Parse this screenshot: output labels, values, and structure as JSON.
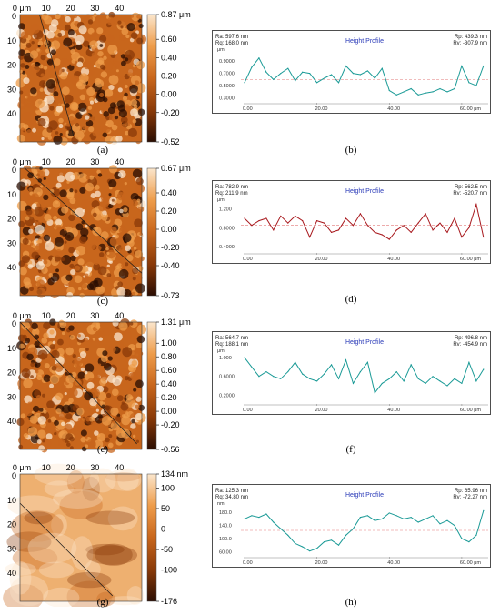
{
  "chart_data": [
    {
      "type": "heatmap",
      "panel": "(a)",
      "xticks": [
        "0 μm",
        "10",
        "20",
        "30",
        "40"
      ],
      "yticks": [
        "0",
        "10",
        "20",
        "30",
        "40"
      ],
      "colorbar": [
        "0.87 μm",
        "0.60",
        "0.40",
        "0.20",
        "0.00",
        "-0.20",
        "-0.52"
      ],
      "colorbar_values": [
        0.87,
        0.6,
        0.4,
        0.2,
        0.0,
        -0.2,
        -0.52
      ],
      "colors": [
        "#2a0d02",
        "#8a3a08",
        "#c8661c",
        "#ee9c4a",
        "#fbe6cc"
      ],
      "line": [
        [
          8,
          0
        ],
        [
          22,
          50
        ]
      ],
      "texture": "grainy"
    },
    {
      "type": "line",
      "panel": "(b)",
      "title": "Height Profile",
      "stats_left": [
        "Ra: 597.6 nm",
        "Rq: 168.0 nm"
      ],
      "stats_right": [
        "Rp: 439.3 nm",
        "Rv: -307.9 nm"
      ],
      "yunit": "μm",
      "yticks": [
        "0.9000",
        "0.7000",
        "0.5000",
        "0.3000"
      ],
      "ytick_values": [
        0.9,
        0.7,
        0.5,
        0.3
      ],
      "xticks": [
        "0.00",
        "20.00",
        "40.00",
        "60.00 μm"
      ],
      "xtick_values": [
        0,
        20,
        40,
        60
      ],
      "xlim": [
        -1,
        67.3
      ],
      "ylim": [
        0.25,
        1.05
      ],
      "mean": 0.6,
      "color": "#1a9a96",
      "x": [
        0,
        2,
        4,
        6,
        8,
        10,
        12,
        14,
        16,
        18,
        20,
        22,
        24,
        26,
        28,
        30,
        32,
        34,
        36,
        38,
        40,
        42,
        44,
        46,
        48,
        50,
        52,
        54,
        56,
        58,
        60,
        62,
        64,
        66
      ],
      "values": [
        0.55,
        0.8,
        0.95,
        0.72,
        0.6,
        0.7,
        0.78,
        0.58,
        0.72,
        0.7,
        0.55,
        0.62,
        0.68,
        0.55,
        0.82,
        0.7,
        0.68,
        0.74,
        0.62,
        0.78,
        0.42,
        0.35,
        0.4,
        0.45,
        0.35,
        0.38,
        0.4,
        0.45,
        0.4,
        0.45,
        0.82,
        0.55,
        0.5,
        0.82
      ]
    },
    {
      "type": "heatmap",
      "panel": "(c)",
      "xticks": [
        "0 μm",
        "10",
        "20",
        "30",
        "40"
      ],
      "yticks": [
        "0",
        "10",
        "20",
        "30",
        "40"
      ],
      "colorbar": [
        "0.67 μm",
        "0.40",
        "0.20",
        "0.00",
        "-0.20",
        "-0.40",
        "-0.73"
      ],
      "colorbar_values": [
        0.67,
        0.4,
        0.2,
        0.0,
        -0.2,
        -0.4,
        -0.73
      ],
      "colors": [
        "#2a0d02",
        "#8a3a08",
        "#c8661c",
        "#ee9c4a",
        "#fbe6cc"
      ],
      "line": [
        [
          2,
          0
        ],
        [
          50,
          43
        ]
      ],
      "texture": "grainy"
    },
    {
      "type": "line",
      "panel": "(d)",
      "title": "Height Profile",
      "stats_left": [
        "Ra: 782.9 nm",
        "Rq: 211.9 nm"
      ],
      "stats_right": [
        "Rp: 562.5 nm",
        "Rv: -520.7 nm"
      ],
      "yunit": "μm",
      "yticks": [
        "1.200",
        "0.8000",
        "0.4000"
      ],
      "ytick_values": [
        1.2,
        0.8,
        0.4
      ],
      "xticks": [
        "0.00",
        "20.00",
        "40.00",
        "60.00 μm"
      ],
      "xtick_values": [
        0,
        20,
        40,
        60
      ],
      "xlim": [
        -1,
        67.3
      ],
      "ylim": [
        0.3,
        1.35
      ],
      "mean": 0.85,
      "color": "#a8191e",
      "x": [
        0,
        2,
        4,
        6,
        8,
        10,
        12,
        14,
        16,
        18,
        20,
        22,
        24,
        26,
        28,
        30,
        32,
        34,
        36,
        38,
        40,
        42,
        44,
        46,
        48,
        50,
        52,
        54,
        56,
        58,
        60,
        62,
        64,
        66
      ],
      "values": [
        1.0,
        0.85,
        0.95,
        1.0,
        0.75,
        1.05,
        0.9,
        1.05,
        0.95,
        0.6,
        0.95,
        0.9,
        0.7,
        0.75,
        1.0,
        0.85,
        1.1,
        0.85,
        0.7,
        0.65,
        0.55,
        0.75,
        0.85,
        0.7,
        0.9,
        1.1,
        0.75,
        0.9,
        0.7,
        1.0,
        0.6,
        0.8,
        1.3,
        0.6
      ]
    },
    {
      "type": "heatmap",
      "panel": "(e)",
      "xticks": [
        "0 μm",
        "10",
        "20",
        "30",
        "40"
      ],
      "yticks": [
        "0",
        "10",
        "20",
        "30",
        "40"
      ],
      "colorbar": [
        "1.31 μm",
        "1.00",
        "0.80",
        "0.60",
        "0.40",
        "0.20",
        "0.00",
        "-0.20",
        "-0.56"
      ],
      "colorbar_values": [
        1.31,
        1.0,
        0.8,
        0.6,
        0.4,
        0.2,
        0.0,
        -0.2,
        -0.56
      ],
      "colors": [
        "#2a0d02",
        "#8a3a08",
        "#c8661c",
        "#ee9c4a",
        "#fbe6cc"
      ],
      "line": [
        [
          0,
          0
        ],
        [
          48,
          50
        ]
      ],
      "texture": "grainy"
    },
    {
      "type": "line",
      "panel": "(f)",
      "title": "Height Profile",
      "stats_left": [
        "Ra: 564.7 nm",
        "Rq: 188.1 nm"
      ],
      "stats_right": [
        "Rp: 496.8 nm",
        "Rv: -454.9 nm"
      ],
      "yunit": "μm",
      "yticks": [
        "1.000",
        "0.6000",
        "0.2000"
      ],
      "ytick_values": [
        1.0,
        0.6,
        0.2
      ],
      "xticks": [
        "0.00",
        "20.00",
        "40.00",
        "60.00 μm"
      ],
      "xtick_values": [
        0,
        20,
        40,
        60
      ],
      "xlim": [
        -1,
        67.3
      ],
      "ylim": [
        0.05,
        1.1
      ],
      "mean": 0.57,
      "color": "#1a9a96",
      "x": [
        0,
        2,
        4,
        6,
        8,
        10,
        12,
        14,
        16,
        18,
        20,
        22,
        24,
        26,
        28,
        30,
        32,
        34,
        36,
        38,
        40,
        42,
        44,
        46,
        48,
        50,
        52,
        54,
        56,
        58,
        60,
        62,
        64,
        66
      ],
      "values": [
        1.0,
        0.8,
        0.6,
        0.7,
        0.6,
        0.55,
        0.7,
        0.9,
        0.65,
        0.55,
        0.5,
        0.65,
        0.85,
        0.55,
        0.95,
        0.45,
        0.7,
        0.9,
        0.25,
        0.45,
        0.55,
        0.7,
        0.5,
        0.85,
        0.55,
        0.45,
        0.6,
        0.5,
        0.4,
        0.55,
        0.45,
        0.9,
        0.5,
        0.75
      ]
    },
    {
      "type": "heatmap",
      "panel": "(g)",
      "xticks": [
        "0 μm",
        "10",
        "20",
        "30",
        "40"
      ],
      "yticks": [
        "0",
        "10",
        "20",
        "30",
        "40"
      ],
      "colorbar": [
        "134 nm",
        "100",
        "50",
        "0",
        "-50",
        "-100",
        "-176"
      ],
      "colorbar_values": [
        134,
        100,
        50,
        0,
        -50,
        -100,
        -176
      ],
      "colors": [
        "#2a0d02",
        "#8a3a08",
        "#c8661c",
        "#ee9c4a",
        "#fbe6cc"
      ],
      "line": [
        [
          0,
          12
        ],
        [
          38,
          50
        ]
      ],
      "texture": "smooth"
    },
    {
      "type": "line",
      "panel": "(h)",
      "title": "Height Profile",
      "stats_left": [
        "Ra: 125.3 nm",
        "Rq: 34.80 nm"
      ],
      "stats_right": [
        "Rp: 65.96 nm",
        "Rv: -72.27 nm"
      ],
      "yunit": "nm",
      "yticks": [
        "180.0",
        "140.0",
        "100.0",
        "60.00"
      ],
      "ytick_values": [
        180,
        140,
        100,
        60
      ],
      "xticks": [
        "0.00",
        "20.00",
        "40.00",
        "60.00 μm"
      ],
      "xtick_values": [
        0,
        20,
        40,
        60
      ],
      "xlim": [
        -1,
        67.3
      ],
      "ylim": [
        50,
        200
      ],
      "mean": 125,
      "color": "#1a9a96",
      "x": [
        0,
        2,
        4,
        6,
        8,
        10,
        12,
        14,
        16,
        18,
        20,
        22,
        24,
        26,
        28,
        30,
        32,
        34,
        36,
        38,
        40,
        42,
        44,
        46,
        48,
        50,
        52,
        54,
        56,
        58,
        60,
        62,
        64,
        66
      ],
      "values": [
        160,
        170,
        165,
        175,
        150,
        130,
        110,
        85,
        75,
        62,
        70,
        90,
        95,
        80,
        110,
        130,
        165,
        170,
        155,
        160,
        178,
        170,
        160,
        165,
        150,
        160,
        170,
        145,
        155,
        140,
        100,
        90,
        110,
        185
      ]
    }
  ]
}
